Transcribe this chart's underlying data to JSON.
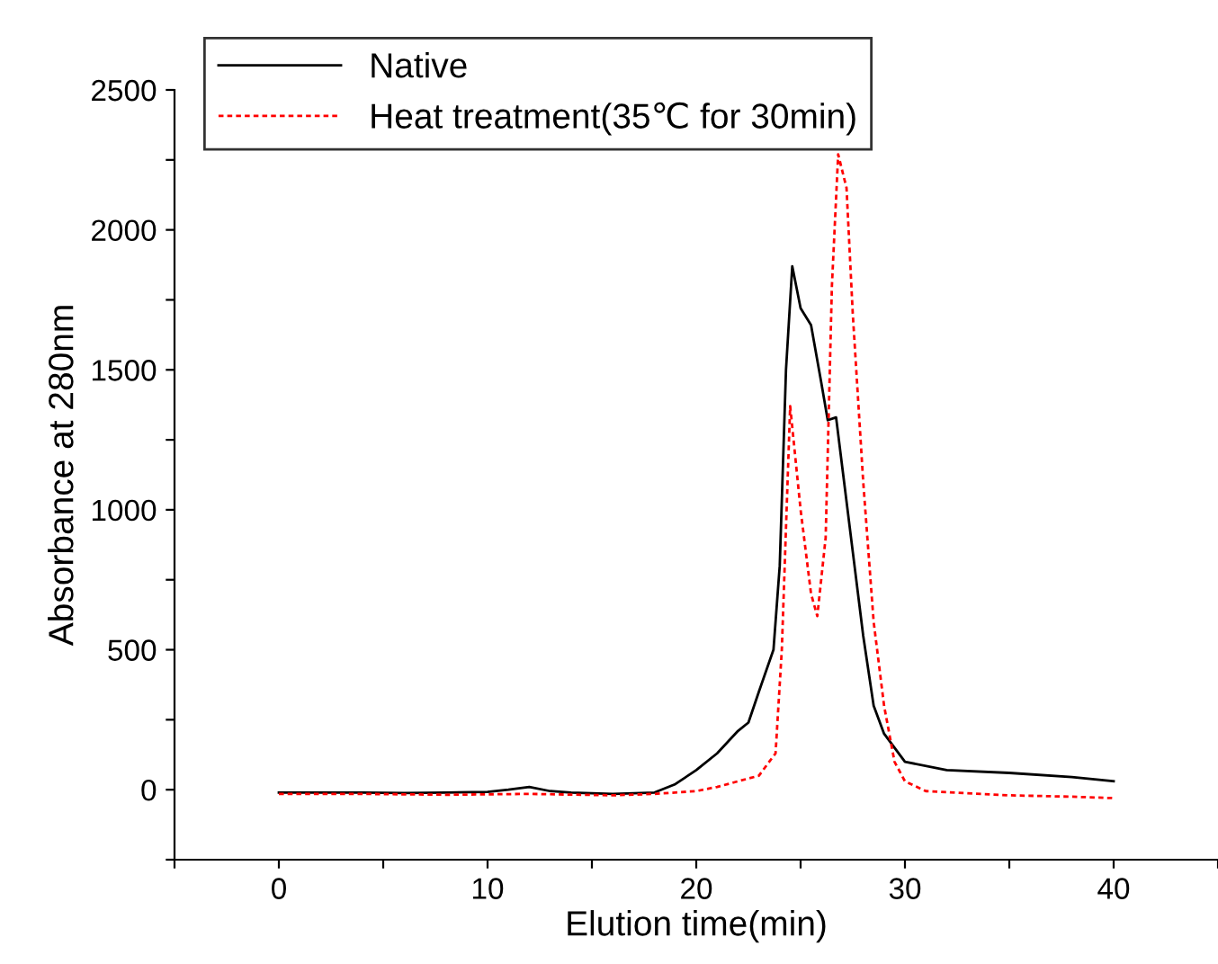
{
  "chart_data": {
    "type": "line",
    "xlabel": "Elution time(min)",
    "ylabel": "Absorbance at 280nm",
    "xlim": [
      -5,
      45
    ],
    "ylim": [
      -250,
      2500
    ],
    "xticks": [
      {
        "value": -5,
        "label": null
      },
      0,
      {
        "value": 5,
        "label": null
      },
      10,
      {
        "value": 15,
        "label": null
      },
      20,
      {
        "value": 25,
        "label": null
      },
      30,
      {
        "value": 35,
        "label": null
      },
      40,
      {
        "value": 45,
        "label": null
      }
    ],
    "yticks": [
      {
        "value": -250,
        "label": null
      },
      0,
      {
        "value": 250,
        "label": null
      },
      500,
      {
        "value": 750,
        "label": null
      },
      1000,
      {
        "value": 1250,
        "label": null
      },
      1500,
      {
        "value": 1750,
        "label": null
      },
      2000,
      {
        "value": 2250,
        "label": null
      },
      2500
    ],
    "legend": "top",
    "grid": false,
    "series": [
      {
        "name": "Native",
        "color": "#000000",
        "line_style": "solid",
        "x": [
          0,
          2,
          4,
          6,
          8,
          10,
          11,
          12,
          13,
          14,
          16,
          18,
          19,
          20,
          21,
          22,
          22.5,
          23,
          23.7,
          24,
          24.3,
          24.6,
          25,
          25.5,
          26,
          26.3,
          26.7,
          27,
          27.5,
          28,
          28.5,
          29,
          30,
          32,
          35,
          38,
          40
        ],
        "values": [
          -10,
          -10,
          -10,
          -12,
          -10,
          -8,
          0,
          10,
          -5,
          -10,
          -15,
          -10,
          20,
          70,
          130,
          210,
          240,
          350,
          500,
          800,
          1500,
          1870,
          1720,
          1660,
          1450,
          1320,
          1330,
          1150,
          850,
          550,
          300,
          200,
          100,
          70,
          60,
          45,
          30
        ]
      },
      {
        "name": "Heat treatment(35℃ for 30min)",
        "color": "#ff0000",
        "line_style": "dashed",
        "x": [
          0,
          4,
          8,
          12,
          16,
          18,
          20,
          21,
          22,
          23,
          23.8,
          24.1,
          24.5,
          25,
          25.5,
          25.8,
          26.2,
          26.5,
          26.8,
          27.2,
          27.5,
          28,
          28.5,
          29,
          29.5,
          30,
          31,
          35,
          38,
          40
        ],
        "values": [
          -15,
          -15,
          -18,
          -15,
          -20,
          -15,
          -5,
          10,
          30,
          50,
          130,
          500,
          1370,
          1000,
          700,
          620,
          900,
          1800,
          2270,
          2150,
          1700,
          1100,
          600,
          300,
          100,
          30,
          -5,
          -20,
          -25,
          -30
        ]
      }
    ]
  }
}
